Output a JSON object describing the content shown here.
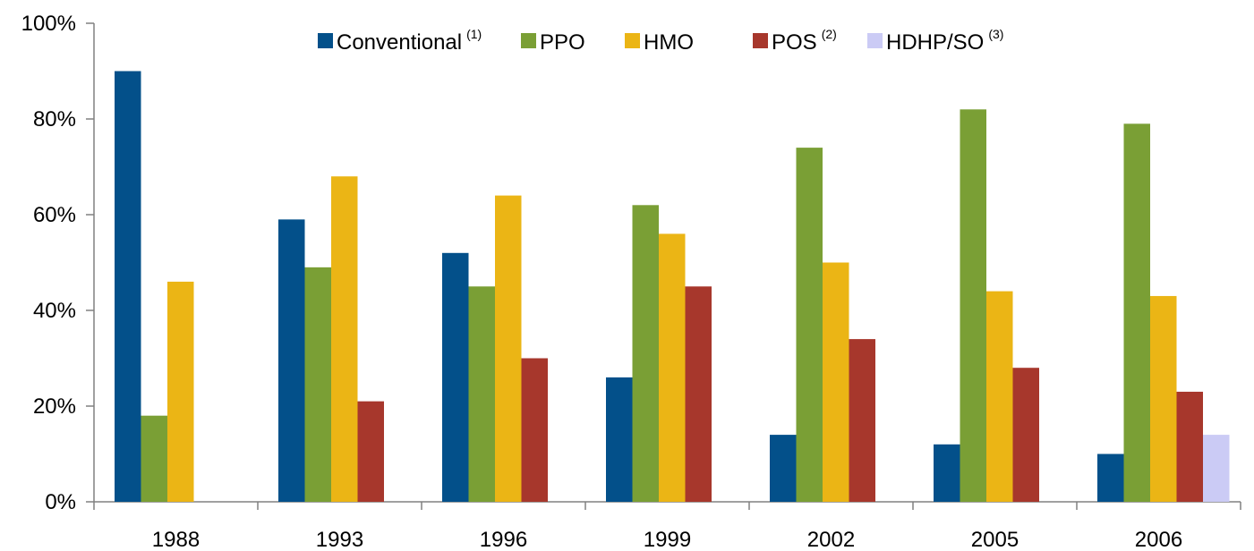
{
  "chart_data": {
    "type": "bar",
    "categories": [
      "1988",
      "1993",
      "1996",
      "1999",
      "2002",
      "2005",
      "2006"
    ],
    "series": [
      {
        "name": "Conventional",
        "note": "(1)",
        "color": "#03508a",
        "values": [
          90,
          59,
          52,
          26,
          14,
          12,
          10
        ]
      },
      {
        "name": "PPO",
        "note": "",
        "color": "#7a9f35",
        "values": [
          18,
          49,
          45,
          62,
          74,
          82,
          79
        ]
      },
      {
        "name": "HMO",
        "note": "",
        "color": "#ebb515",
        "values": [
          46,
          68,
          64,
          56,
          50,
          44,
          43
        ]
      },
      {
        "name": "POS",
        "note": "(2)",
        "color": "#a7372c",
        "values": [
          null,
          21,
          30,
          45,
          34,
          28,
          23
        ]
      },
      {
        "name": "HDHP/SO",
        "note": "(3)",
        "color": "#cbcbf5",
        "values": [
          null,
          null,
          null,
          null,
          null,
          null,
          14
        ]
      }
    ],
    "yticks": [
      "0%",
      "20%",
      "40%",
      "60%",
      "80%",
      "100%"
    ],
    "ylim": [
      0,
      100
    ],
    "title": "",
    "xlabel": "",
    "ylabel": "",
    "grid": false,
    "legend_position": "top"
  }
}
